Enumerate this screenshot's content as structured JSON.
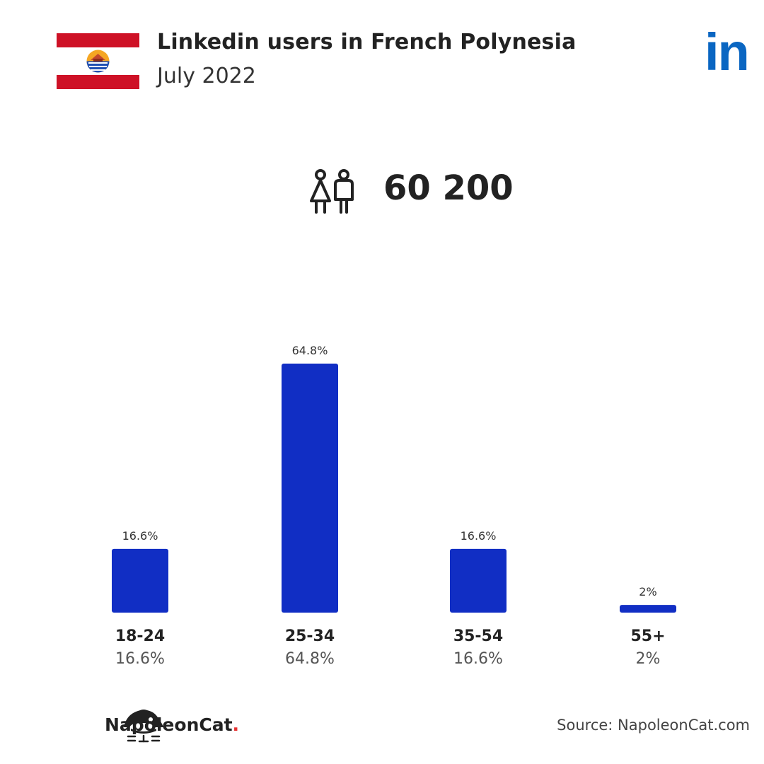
{
  "header": {
    "title": "Linkedin users in French Polynesia",
    "subtitle": "July 2022",
    "logo_text": "in"
  },
  "total_users": "60 200",
  "chart_data": {
    "type": "bar",
    "categories": [
      "18-24",
      "25-34",
      "35-54",
      "55+"
    ],
    "values": [
      16.6,
      64.8,
      16.6,
      2
    ],
    "value_labels": [
      "16.6%",
      "64.8%",
      "16.6%",
      "2%"
    ],
    "bar_color": "#112ec4",
    "ylim": [
      0,
      64.8
    ],
    "grid": false
  },
  "footer": {
    "brand": "NapoleonCat",
    "brand_dot": ".",
    "source": "Source: NapoleonCat.com"
  },
  "colors": {
    "flag_red": "#ce1126",
    "linkedin_blue": "#0a66c2",
    "text": "#222222"
  }
}
